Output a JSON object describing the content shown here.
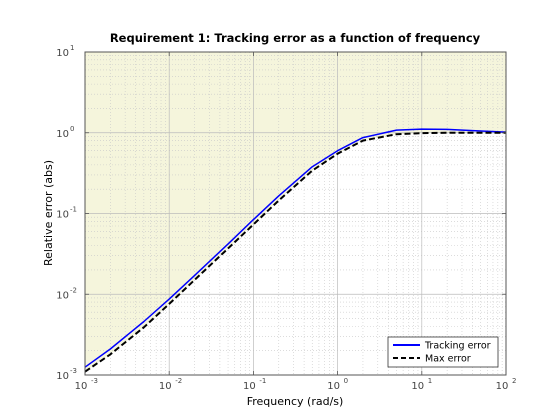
{
  "chart_data": {
    "type": "line",
    "title": "Requirement 1: Tracking error as a function of frequency",
    "xlabel": "Frequency (rad/s)",
    "ylabel": "Relative error (abs)",
    "xscale": "log",
    "yscale": "log",
    "xlim": [
      0.001,
      100
    ],
    "ylim": [
      0.001,
      10
    ],
    "x_tick_labels": [
      {
        "base": "10",
        "exp": "-3"
      },
      {
        "base": "10",
        "exp": "-2"
      },
      {
        "base": "10",
        "exp": "-1"
      },
      {
        "base": "10",
        "exp": "0"
      },
      {
        "base": "10",
        "exp": "1"
      },
      {
        "base": "10",
        "exp": "2"
      }
    ],
    "y_tick_labels": [
      {
        "base": "10",
        "exp": "-3"
      },
      {
        "base": "10",
        "exp": "-2"
      },
      {
        "base": "10",
        "exp": "-1"
      },
      {
        "base": "10",
        "exp": "0"
      },
      {
        "base": "10",
        "exp": "1"
      }
    ],
    "grid": true,
    "minor_grid": true,
    "legend_position": "bottom-right",
    "shaded_region": {
      "description": "area above max error curve",
      "color": "#f5f5dc"
    },
    "series": [
      {
        "name": "Tracking error",
        "color": "#0000ff",
        "style": "solid",
        "x": [
          0.001,
          0.002,
          0.005,
          0.01,
          0.02,
          0.05,
          0.1,
          0.2,
          0.5,
          1,
          2,
          5,
          10,
          20,
          50,
          100
        ],
        "y": [
          0.00125,
          0.0021,
          0.0046,
          0.0087,
          0.017,
          0.042,
          0.084,
          0.165,
          0.38,
          0.6,
          0.87,
          1.08,
          1.11,
          1.1,
          1.05,
          1.02
        ]
      },
      {
        "name": "Max error",
        "color": "#000000",
        "style": "dashed",
        "x": [
          0.001,
          0.002,
          0.005,
          0.01,
          0.02,
          0.05,
          0.1,
          0.2,
          0.5,
          1,
          2,
          5,
          10,
          20,
          50,
          100
        ],
        "y": [
          0.0011,
          0.0018,
          0.0039,
          0.0076,
          0.015,
          0.037,
          0.073,
          0.145,
          0.34,
          0.55,
          0.8,
          0.96,
          0.99,
          1.0,
          1.0,
          1.0
        ]
      }
    ]
  }
}
